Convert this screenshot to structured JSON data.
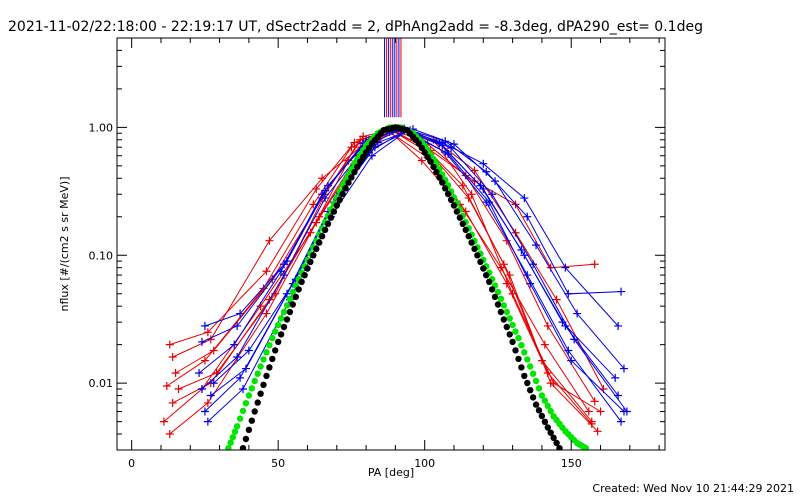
{
  "chart_data": {
    "type": "line",
    "title": "2021-11-02/22:18:00 - 22:19:17 UT, dSectr2add = 2, dPhAng2add = -8.3deg, dPA290_est=  0.1deg",
    "xlabel": "PA [deg]",
    "ylabel": "nflux [#/(cm2 s sr MeV)]",
    "xlim": [
      -5,
      182
    ],
    "ylim": [
      0.003,
      5
    ],
    "yscale": "log",
    "xticks": [
      0,
      50,
      100,
      150
    ],
    "xtick_labels": [
      "0",
      "50",
      "100",
      "150"
    ],
    "yticks": [
      0.01,
      0.1,
      1.0
    ],
    "ytick_labels": [
      "0.01",
      "0.10",
      "1.00"
    ],
    "grid": false,
    "legend": "none",
    "colors": {
      "sector_a": "#e60000",
      "sector_b": "#0000e6",
      "fit_wide": "#00e600",
      "fit_narrow": "#000000",
      "marker_lines": [
        "#0000e6",
        "#e60000",
        "#0000e6",
        "#e60000",
        "#0000e6"
      ]
    },
    "series": [
      {
        "type": "fit",
        "color": "fit_wide",
        "x": [
          33,
          36,
          40,
          44,
          48,
          52,
          56,
          60,
          64,
          68,
          72,
          76,
          80,
          84,
          88,
          90,
          92,
          96,
          100,
          104,
          108,
          112,
          116,
          120,
          124,
          128,
          132,
          136,
          140,
          144,
          148,
          152,
          155
        ],
        "y": [
          0.0031,
          0.0046,
          0.008,
          0.0135,
          0.0225,
          0.036,
          0.058,
          0.092,
          0.145,
          0.228,
          0.352,
          0.52,
          0.72,
          0.9,
          0.995,
          1.0,
          0.995,
          0.9,
          0.72,
          0.52,
          0.352,
          0.228,
          0.145,
          0.092,
          0.058,
          0.036,
          0.0225,
          0.0135,
          0.008,
          0.0055,
          0.0042,
          0.0034,
          0.0031
        ]
      },
      {
        "type": "fit",
        "color": "fit_narrow",
        "x": [
          38,
          42,
          46,
          50,
          54,
          58,
          62,
          66,
          70,
          74,
          78,
          82,
          86,
          90,
          94,
          98,
          102,
          106,
          110,
          114,
          118,
          122,
          126,
          130,
          134,
          138,
          142,
          146
        ],
        "y": [
          0.0031,
          0.006,
          0.0114,
          0.021,
          0.036,
          0.062,
          0.1,
          0.158,
          0.245,
          0.37,
          0.54,
          0.75,
          0.95,
          1.0,
          0.95,
          0.75,
          0.54,
          0.37,
          0.245,
          0.158,
          0.1,
          0.062,
          0.036,
          0.021,
          0.0114,
          0.0068,
          0.0045,
          0.0031
        ]
      },
      {
        "type": "sector",
        "color": "sector_a",
        "x": [
          12,
          25,
          45,
          62,
          75,
          88,
          100,
          113,
          127,
          140,
          157
        ],
        "y": [
          0.0095,
          0.015,
          0.055,
          0.25,
          0.7,
          0.96,
          0.7,
          0.35,
          0.085,
          0.015,
          0.005
        ]
      },
      {
        "type": "sector",
        "color": "sector_a",
        "x": [
          13,
          26,
          46,
          63,
          76,
          89,
          101,
          114,
          128,
          142,
          158
        ],
        "y": [
          0.02,
          0.025,
          0.075,
          0.33,
          0.76,
          0.97,
          0.74,
          0.42,
          0.13,
          0.028,
          0.0072
        ]
      },
      {
        "type": "sector",
        "color": "sector_a",
        "x": [
          14,
          27,
          47,
          64,
          77,
          89,
          102,
          115,
          129,
          143,
          159
        ],
        "y": [
          0.007,
          0.01,
          0.045,
          0.2,
          0.6,
          0.94,
          0.62,
          0.28,
          0.07,
          0.01,
          0.0042
        ]
      },
      {
        "type": "sector",
        "color": "sector_a",
        "x": [
          15,
          28,
          48,
          65,
          78,
          90,
          103,
          116,
          130,
          144,
          160
        ],
        "y": [
          0.012,
          0.018,
          0.065,
          0.28,
          0.8,
          0.98,
          0.8,
          0.3,
          0.05,
          0.01,
          0.006
        ]
      },
      {
        "type": "sector",
        "color": "sector_a",
        "x": [
          11,
          24,
          44,
          61,
          74,
          88,
          99,
          112,
          126,
          141,
          156
        ],
        "y": [
          0.005,
          0.009,
          0.04,
          0.15,
          0.55,
          0.93,
          0.55,
          0.25,
          0.08,
          0.02,
          0.006
        ]
      },
      {
        "type": "sector",
        "color": "sector_a",
        "x": [
          16,
          29,
          49,
          66,
          79,
          91,
          104,
          117,
          131,
          145,
          161
        ],
        "y": [
          0.009,
          0.012,
          0.05,
          0.3,
          0.85,
          0.99,
          0.78,
          0.46,
          0.15,
          0.045,
          0.009
        ]
      },
      {
        "type": "sector",
        "color": "sector_a",
        "x": [
          14,
          27,
          47,
          65,
          78,
          89,
          102,
          117,
          131,
          143,
          158
        ],
        "y": [
          0.016,
          0.022,
          0.13,
          0.4,
          0.7,
          0.95,
          0.66,
          0.38,
          0.25,
          0.08,
          0.085
        ]
      },
      {
        "type": "sector",
        "color": "sector_a",
        "x": [
          13,
          26,
          46,
          63,
          76,
          88,
          101,
          114,
          128,
          142,
          157
        ],
        "y": [
          0.004,
          0.007,
          0.035,
          0.18,
          0.52,
          0.92,
          0.58,
          0.22,
          0.06,
          0.012,
          0.0048
        ]
      },
      {
        "type": "sector",
        "color": "sector_b",
        "x": [
          24,
          36,
          52,
          66,
          80,
          92,
          106,
          120,
          134,
          148,
          166
        ],
        "y": [
          0.009,
          0.016,
          0.07,
          0.28,
          0.72,
          0.96,
          0.72,
          0.33,
          0.1,
          0.028,
          0.008
        ]
      },
      {
        "type": "sector",
        "color": "sector_b",
        "x": [
          25,
          37,
          53,
          67,
          81,
          93,
          107,
          121,
          135,
          149,
          167
        ],
        "y": [
          0.028,
          0.035,
          0.09,
          0.35,
          0.8,
          0.98,
          0.78,
          0.45,
          0.2,
          0.05,
          0.052
        ]
      },
      {
        "type": "sector",
        "color": "sector_b",
        "x": [
          26,
          38,
          54,
          68,
          82,
          94,
          108,
          122,
          136,
          150,
          168
        ],
        "y": [
          0.005,
          0.009,
          0.045,
          0.2,
          0.6,
          0.94,
          0.62,
          0.26,
          0.06,
          0.015,
          0.006
        ]
      },
      {
        "type": "sector",
        "color": "sector_b",
        "x": [
          23,
          35,
          51,
          65,
          79,
          91,
          105,
          119,
          133,
          147,
          165
        ],
        "y": [
          0.012,
          0.02,
          0.075,
          0.3,
          0.75,
          0.97,
          0.75,
          0.35,
          0.11,
          0.03,
          0.011
        ]
      },
      {
        "type": "sector",
        "color": "sector_b",
        "x": [
          27,
          39,
          55,
          69,
          83,
          95,
          109,
          123,
          137,
          151,
          169
        ],
        "y": [
          0.008,
          0.013,
          0.06,
          0.26,
          0.7,
          0.95,
          0.69,
          0.3,
          0.085,
          0.022,
          0.006
        ]
      },
      {
        "type": "sector",
        "color": "sector_b",
        "x": [
          24,
          36,
          52,
          66,
          80,
          92,
          106,
          120,
          134,
          148,
          166
        ],
        "y": [
          0.021,
          0.028,
          0.085,
          0.32,
          0.78,
          0.98,
          0.76,
          0.52,
          0.28,
          0.08,
          0.028
        ]
      },
      {
        "type": "sector",
        "color": "sector_b",
        "x": [
          25,
          37,
          53,
          67,
          81,
          93,
          107,
          121,
          135,
          149,
          167
        ],
        "y": [
          0.006,
          0.011,
          0.05,
          0.22,
          0.64,
          0.94,
          0.64,
          0.26,
          0.07,
          0.018,
          0.005
        ]
      },
      {
        "type": "sector",
        "color": "sector_b",
        "x": [
          28,
          40,
          56,
          70,
          84,
          96,
          110,
          124,
          138,
          152,
          168
        ],
        "y": [
          0.01,
          0.018,
          0.065,
          0.29,
          0.76,
          0.97,
          0.74,
          0.38,
          0.12,
          0.035,
          0.013
        ]
      }
    ],
    "marker_lines": {
      "x": [
        86.3,
        87.0,
        87.7,
        88.4,
        89.1,
        89.8,
        90.5,
        91.2,
        91.9
      ],
      "y_from": 1.2,
      "y_to": 5
    }
  },
  "footer": {
    "created": "Created: Wed Nov 10 21:44:29 2021"
  }
}
